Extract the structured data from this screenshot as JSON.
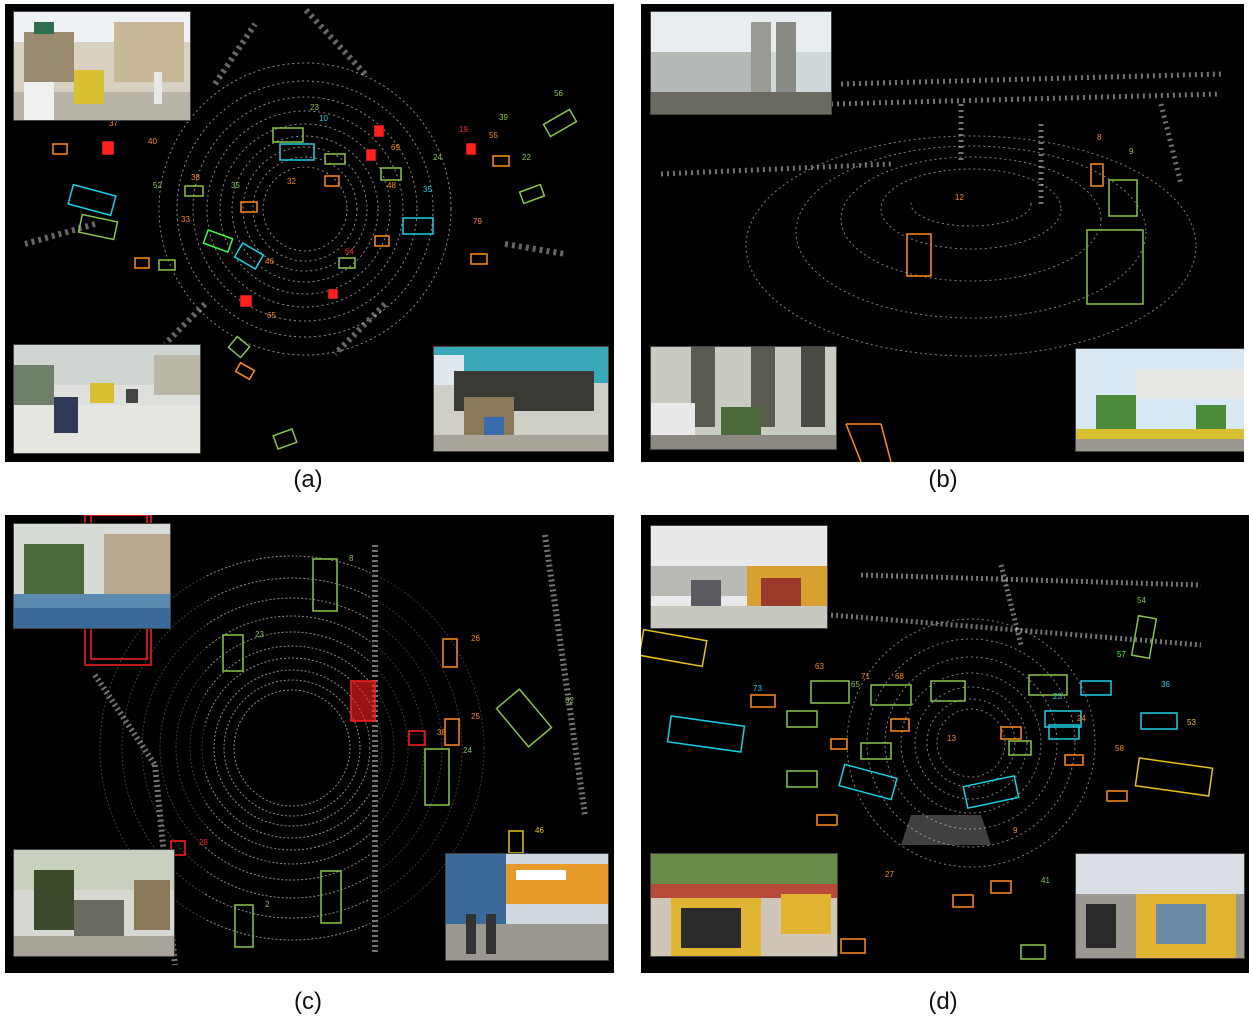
{
  "figure": {
    "captions": {
      "a": "(a)",
      "b": "(b)",
      "c": "(c)",
      "d": "(d)"
    },
    "colors": {
      "background": "#000000",
      "points": "#ffffff",
      "orange": "#ff8a1a",
      "green": "#8ac44a",
      "cyan": "#1ad0e6",
      "red": "#ff2020",
      "yellow": "#e6c21a",
      "bright_green": "#3dff3d"
    }
  },
  "panel_a": {
    "labels": [
      "23",
      "10",
      "39",
      "56",
      "37",
      "40",
      "19",
      "55",
      "22",
      "38",
      "52",
      "35",
      "48",
      "32",
      "79",
      "65",
      "33",
      "35",
      "64",
      "46",
      "69",
      "24"
    ]
  },
  "panel_b": {
    "labels": [
      "8",
      "9",
      "12"
    ]
  },
  "panel_c": {
    "labels": [
      "8",
      "23",
      "26",
      "32",
      "25",
      "24",
      "46",
      "2",
      "28",
      "38"
    ]
  },
  "panel_d": {
    "labels": [
      "54",
      "57",
      "36",
      "63",
      "73",
      "71",
      "68",
      "65",
      "53",
      "58",
      "24",
      "23",
      "13",
      "9",
      "27",
      "41"
    ]
  }
}
